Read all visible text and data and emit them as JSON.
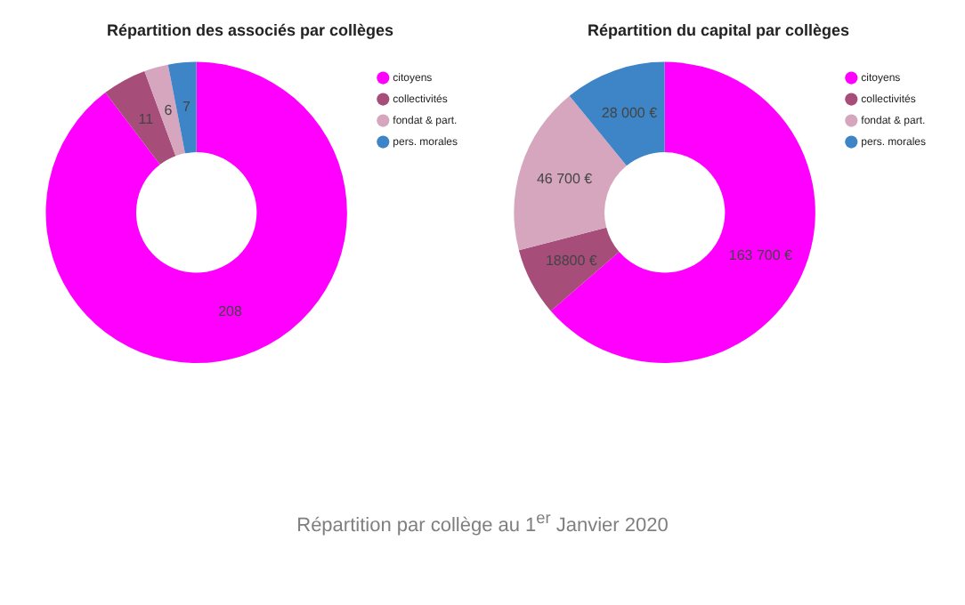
{
  "chart_data": [
    {
      "type": "donut",
      "title": "Répartition des associés par collèges",
      "categories": [
        "citoyens",
        "collectivités",
        "fondat & part.",
        "pers. morales"
      ],
      "values": [
        208,
        11,
        6,
        7
      ],
      "colors": [
        "#ff00ff",
        "#a64d79",
        "#d5a6bd",
        "#3d85c6"
      ],
      "data_labels": true,
      "legend": "top right"
    },
    {
      "type": "donut",
      "title": "Répartition du capital par collèges",
      "categories": [
        "citoyens",
        "collectivités",
        "fondat & part.",
        "pers. morales"
      ],
      "values": [
        163700,
        18800,
        46700,
        28000
      ],
      "value_labels": [
        "163 700 €",
        "18800 €",
        "46 700 €",
        "28 000 €"
      ],
      "colors": [
        "#ff00ff",
        "#a64d79",
        "#d5a6bd",
        "#3d85c6"
      ],
      "legend": "top right"
    },
    {
      "type": "other",
      "title": "Répartition par collège au 1$^{er}$ Janvier 2020"
    }
  ]
}
